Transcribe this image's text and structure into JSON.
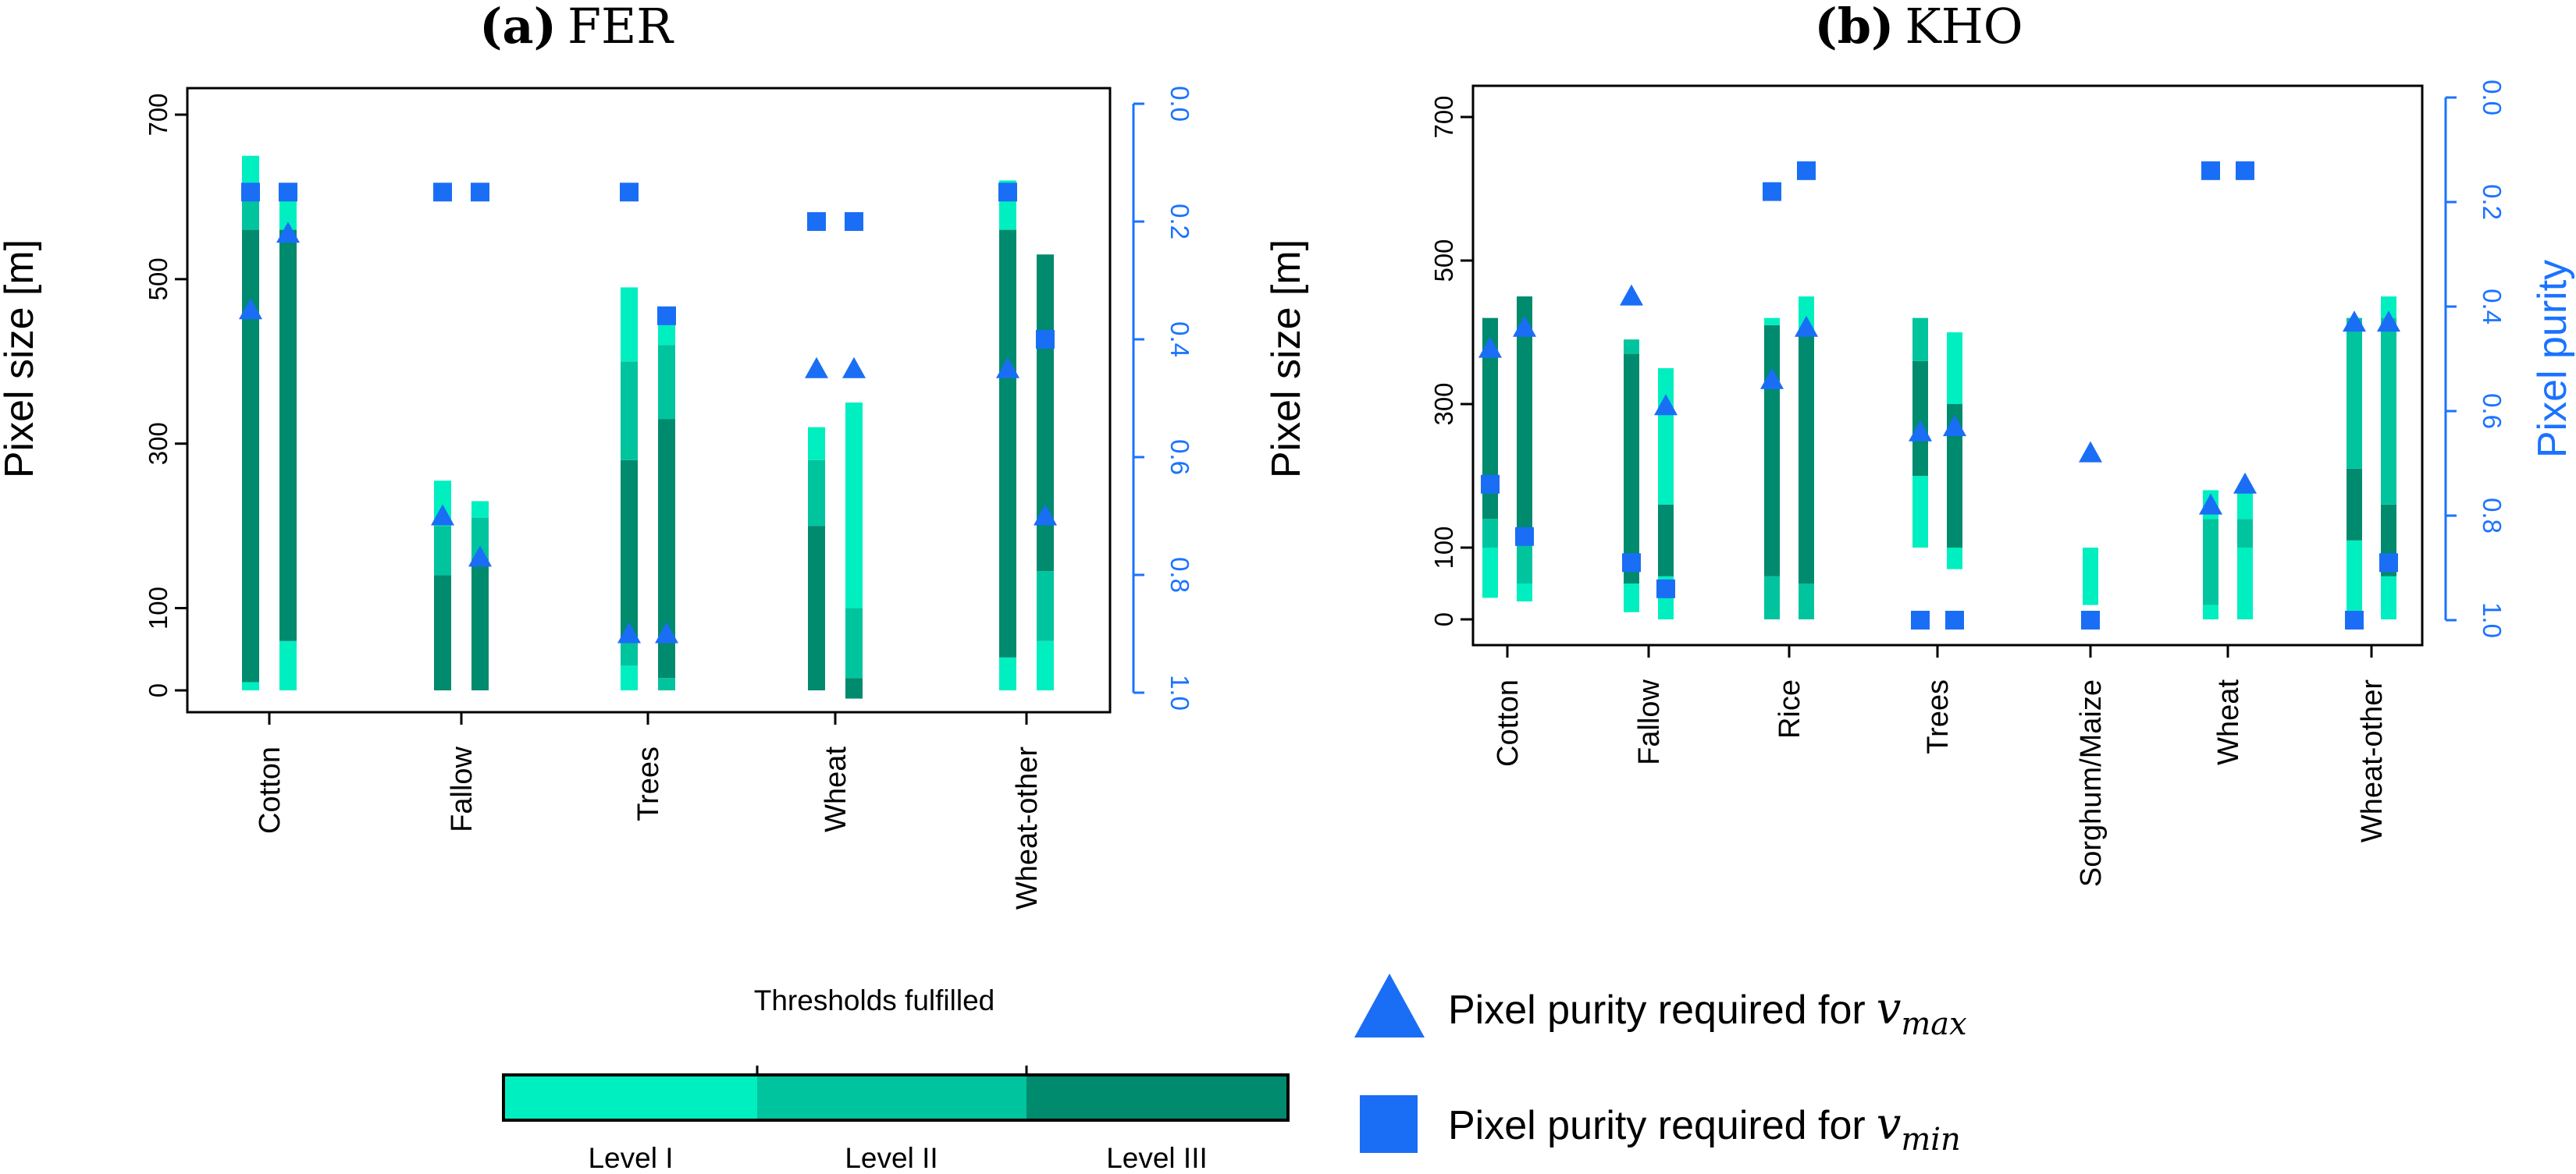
{
  "colors": {
    "level1": "#00efc0",
    "level2": "#00c49e",
    "level3": "#008a6e",
    "marker": "#1a6ef5",
    "right_axis": "#1a73ff"
  },
  "legend": {
    "thresholds_title": "Thresholds fulfilled",
    "levels": [
      "Level I",
      "Level II",
      "Level III"
    ],
    "vmax_text": "Pixel purity required for",
    "vmax_symbol": "v",
    "vmax_sub": "max",
    "vmin_text": "Pixel purity required for",
    "vmin_symbol": "v",
    "vmin_sub": "min"
  },
  "chart_data": [
    {
      "type": "bar",
      "panel_letter": "(a)",
      "title": "FER",
      "ylabel": "Pixel size [m]",
      "ylabel_right": "",
      "ylim": [
        0,
        700
      ],
      "yticks": [
        0,
        100,
        300,
        500,
        700
      ],
      "ylim_right": [
        1.0,
        0.0
      ],
      "yticks_right": [
        "0.0",
        "0.2",
        "0.4",
        "0.6",
        "0.8",
        "1.0"
      ],
      "categories": [
        "Cotton",
        "Fallow",
        "Trees",
        "Wheat",
        "Wheat-other"
      ],
      "bars": [
        {
          "category": "Cotton",
          "segments": [
            [
              0,
              10,
              1
            ],
            [
              10,
              560,
              3
            ],
            [
              560,
              600,
              2
            ],
            [
              600,
              650,
              1
            ]
          ],
          "vmax": 0.35,
          "vmin": 0.15
        },
        {
          "category": "Cotton",
          "segments": [
            [
              0,
              60,
              1
            ],
            [
              60,
              560,
              3
            ],
            [
              560,
              600,
              1
            ]
          ],
          "vmax": 0.22,
          "vmin": 0.15
        },
        {
          "category": "Fallow",
          "segments": [
            [
              0,
              140,
              3
            ],
            [
              140,
              200,
              2
            ],
            [
              200,
              255,
              1
            ]
          ],
          "vmax": 0.7,
          "vmin": 0.15
        },
        {
          "category": "Fallow",
          "segments": [
            [
              0,
              160,
              3
            ],
            [
              160,
              210,
              2
            ],
            [
              210,
              230,
              1
            ]
          ],
          "vmax": 0.77,
          "vmin": 0.15
        },
        {
          "category": "Trees",
          "segments": [
            [
              0,
              30,
              1
            ],
            [
              30,
              60,
              2
            ],
            [
              60,
              280,
              3
            ],
            [
              280,
              400,
              2
            ],
            [
              400,
              490,
              1
            ]
          ],
          "vmax": 0.9,
          "vmin": 0.15
        },
        {
          "category": "Trees",
          "segments": [
            [
              0,
              15,
              2
            ],
            [
              15,
              330,
              3
            ],
            [
              330,
              420,
              2
            ],
            [
              420,
              450,
              1
            ]
          ],
          "vmax": 0.9,
          "vmin": 0.36
        },
        {
          "category": "Wheat",
          "segments": [
            [
              0,
              200,
              3
            ],
            [
              200,
              280,
              2
            ],
            [
              280,
              320,
              1
            ]
          ],
          "vmax": 0.45,
          "vmin": 0.2
        },
        {
          "category": "Wheat",
          "segments": [
            [
              -10,
              15,
              3
            ],
            [
              15,
              100,
              2
            ],
            [
              100,
              350,
              1
            ]
          ],
          "vmax": 0.45,
          "vmin": 0.2
        },
        {
          "category": "Wheat-other",
          "segments": [
            [
              0,
              40,
              1
            ],
            [
              40,
              560,
              3
            ],
            [
              560,
              600,
              1
            ],
            [
              600,
              620,
              1
            ]
          ],
          "vmax": 0.45,
          "vmin": 0.15
        },
        {
          "category": "Wheat-other",
          "segments": [
            [
              0,
              60,
              1
            ],
            [
              60,
              145,
              2
            ],
            [
              145,
              530,
              3
            ]
          ],
          "vmax": 0.7,
          "vmin": 0.4
        }
      ]
    },
    {
      "type": "bar",
      "panel_letter": "(b)",
      "title": "KHO",
      "ylabel": "Pixel size [m]",
      "ylabel_right": "Pixel purity",
      "ylim": [
        0,
        700
      ],
      "yticks": [
        0,
        100,
        300,
        500,
        700
      ],
      "ylim_right": [
        1.0,
        0.0
      ],
      "yticks_right": [
        "0.0",
        "0.2",
        "0.4",
        "0.6",
        "0.8",
        "1.0"
      ],
      "categories": [
        "Cotton",
        "Fallow",
        "Rice",
        "Trees",
        "Sorghum/Maize",
        "Wheat",
        "Wheat-other"
      ],
      "bars": [
        {
          "category": "Cotton",
          "segments": [
            [
              30,
              100,
              1
            ],
            [
              100,
              140,
              2
            ],
            [
              140,
              420,
              3
            ]
          ],
          "vmax": 0.48,
          "vmin": 0.74
        },
        {
          "category": "Cotton",
          "segments": [
            [
              25,
              50,
              1
            ],
            [
              50,
              110,
              2
            ],
            [
              110,
              450,
              3
            ]
          ],
          "vmax": 0.44,
          "vmin": 0.84
        },
        {
          "category": "Fallow",
          "segments": [
            [
              10,
              50,
              1
            ],
            [
              50,
              370,
              3
            ],
            [
              370,
              390,
              2
            ]
          ],
          "vmax": 0.38,
          "vmin": 0.89
        },
        {
          "category": "Fallow",
          "segments": [
            [
              0,
              60,
              1
            ],
            [
              60,
              160,
              3
            ],
            [
              160,
              350,
              1
            ]
          ],
          "vmax": 0.59,
          "vmin": 0.94
        },
        {
          "category": "Rice",
          "segments": [
            [
              0,
              60,
              2
            ],
            [
              60,
              410,
              3
            ],
            [
              410,
              420,
              1
            ]
          ],
          "vmax": 0.54,
          "vmin": 0.18
        },
        {
          "category": "Rice",
          "segments": [
            [
              0,
              50,
              2
            ],
            [
              50,
              400,
              3
            ],
            [
              400,
              450,
              1
            ]
          ],
          "vmax": 0.44,
          "vmin": 0.14
        },
        {
          "category": "Trees",
          "segments": [
            [
              100,
              200,
              1
            ],
            [
              200,
              360,
              3
            ],
            [
              360,
              420,
              2
            ]
          ],
          "vmax": 0.64,
          "vmin": 1.0
        },
        {
          "category": "Trees",
          "segments": [
            [
              70,
              100,
              1
            ],
            [
              100,
              300,
              3
            ],
            [
              300,
              400,
              1
            ]
          ],
          "vmax": 0.63,
          "vmin": 1.0
        },
        {
          "category": "Sorghum/Maize",
          "segments": [
            [
              20,
              100,
              1
            ]
          ],
          "vmax": 0.68,
          "vmin": 1.0
        },
        {
          "category": "Wheat",
          "segments": [
            [
              0,
              20,
              1
            ],
            [
              20,
              140,
              2
            ],
            [
              140,
              180,
              1
            ]
          ],
          "vmax": 0.78,
          "vmin": 0.14
        },
        {
          "category": "Wheat",
          "segments": [
            [
              0,
              100,
              1
            ],
            [
              100,
              140,
              2
            ],
            [
              140,
              180,
              1
            ]
          ],
          "vmax": 0.74,
          "vmin": 0.14
        },
        {
          "category": "Wheat-other",
          "segments": [
            [
              10,
              110,
              1
            ],
            [
              110,
              210,
              3
            ],
            [
              210,
              420,
              2
            ]
          ],
          "vmax": 0.43,
          "vmin": 1.0
        },
        {
          "category": "Wheat-other",
          "segments": [
            [
              0,
              60,
              1
            ],
            [
              60,
              160,
              3
            ],
            [
              160,
              420,
              2
            ],
            [
              420,
              450,
              1
            ]
          ],
          "vmax": 0.43,
          "vmin": 0.89
        }
      ]
    }
  ]
}
